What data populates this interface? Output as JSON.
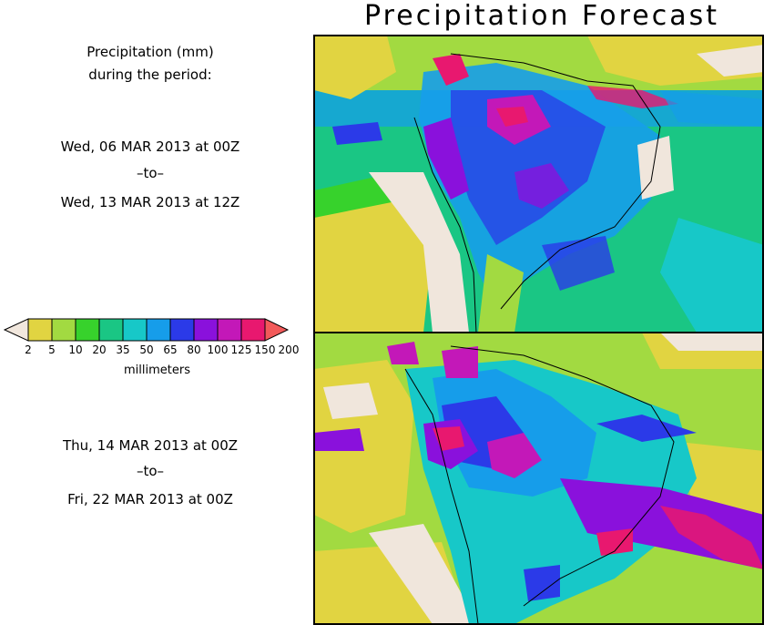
{
  "title": "Precipitation Forecast",
  "info": {
    "line1": "Precipitation (mm)",
    "line2": "during the period:"
  },
  "period1": {
    "start": "Wed, 06 MAR 2013 at 00Z",
    "sep": "–to–",
    "end": "Wed, 13 MAR 2013 at 12Z"
  },
  "period2": {
    "start": "Thu, 14 MAR 2013 at 00Z",
    "sep": "–to–",
    "end": "Fri, 22 MAR 2013 at 00Z"
  },
  "legend": {
    "unit": "millimeters",
    "ticks": [
      "2",
      "5",
      "10",
      "20",
      "35",
      "50",
      "65",
      "80",
      "100",
      "125",
      "150",
      "200"
    ],
    "colors": [
      "#f1e7dd",
      "#e1d441",
      "#a2da41",
      "#37d22c",
      "#1ac684",
      "#17c8c8",
      "#169dea",
      "#2b3ae8",
      "#8a11dc",
      "#c318b8",
      "#e8186f",
      "#f25a5a"
    ]
  },
  "colors": {
    "land_dry": "#f0e6dc",
    "low": "#e1d441",
    "medium": "#17c8c8",
    "high": "#8a11dc",
    "extreme": "#e8186f"
  }
}
